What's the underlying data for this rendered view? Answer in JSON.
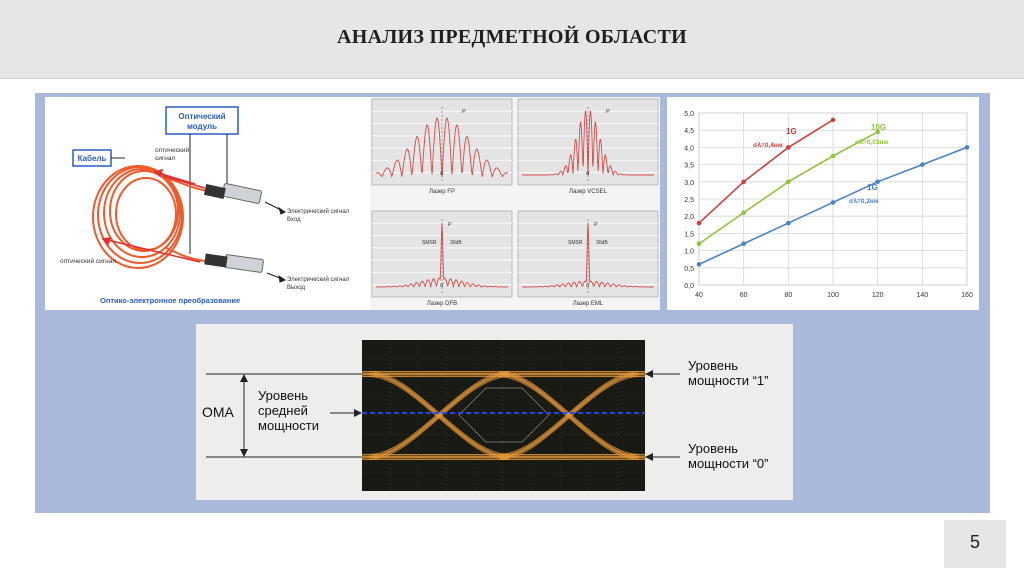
{
  "slide": {
    "title": "АНАЛИЗ ПРЕДМЕТНОЙ ОБЛАСТИ",
    "page_number": "5"
  },
  "cable_figure": {
    "module_label_line1": "Оптический",
    "module_label_line2": "модуль",
    "cable_label": "Кабель",
    "optical_signal_top_line1": "оптический",
    "optical_signal_top_line2": "сигнал",
    "electrical_in_line1": "Электрический сигнал",
    "electrical_in_line2": "Вход",
    "optical_signal_bottom": "оптический сигнал",
    "electrical_out_line1": "Электрический сигнал",
    "electrical_out_line2": "Выход",
    "caption": "Оптико-электронное преобразование",
    "colors": {
      "cable": "#ee5a2a",
      "label_blue": "#2a5cc2",
      "arrow_red": "#e03030"
    }
  },
  "spectra": {
    "panels": [
      {
        "caption": "Лазер FP"
      },
      {
        "caption": "Лазер VCSEL"
      },
      {
        "caption": "Лазер DFB"
      },
      {
        "caption": "Лазер EML"
      }
    ],
    "sigma_label": "σ",
    "p_label": "P",
    "db_label": "30dB",
    "smsr_label": "SMSR"
  },
  "chart_data": {
    "type": "line",
    "xlim": [
      40,
      160
    ],
    "ylim": [
      0,
      5
    ],
    "xticks": [
      "40",
      "60",
      "80",
      "100",
      "120",
      "140",
      "160"
    ],
    "yticks": [
      "0,0",
      "0,5",
      "1,0",
      "1,5",
      "2,0",
      "2,5",
      "3,0",
      "3,5",
      "4,0",
      "4,5",
      "5,0"
    ],
    "grid": true,
    "series": [
      {
        "name": "1G",
        "sublabel": "σλ=0,4нм",
        "color": "#c8413f",
        "x": [
          40,
          60,
          80,
          100
        ],
        "values": [
          1.8,
          3.0,
          4.0,
          4.8
        ]
      },
      {
        "name": "10G",
        "sublabel": "σλ=0,03нм",
        "color": "#8fc43c",
        "x": [
          40,
          60,
          80,
          100,
          120
        ],
        "values": [
          1.2,
          2.1,
          3.0,
          3.75,
          4.45
        ]
      },
      {
        "name": "1G",
        "sublabel": "σλ=0,2нм",
        "color": "#4a83c4",
        "x": [
          40,
          60,
          80,
          100,
          120,
          140,
          160
        ],
        "values": [
          0.6,
          1.2,
          1.8,
          2.4,
          3.0,
          3.5,
          4.0
        ]
      }
    ]
  },
  "eye_diagram": {
    "oma_label": "OMA",
    "avg_line1": "Уровень",
    "avg_line2": "средней",
    "avg_line3": "мощности",
    "level1_line1": "Уровень",
    "level1_line2": "мощности “1”",
    "level0_line1": "Уровень",
    "level0_line2": "мощности “0”",
    "colors": {
      "screen": "#1a1a14",
      "trace": "#e89a3a",
      "avg_line": "#2b49c8"
    }
  }
}
